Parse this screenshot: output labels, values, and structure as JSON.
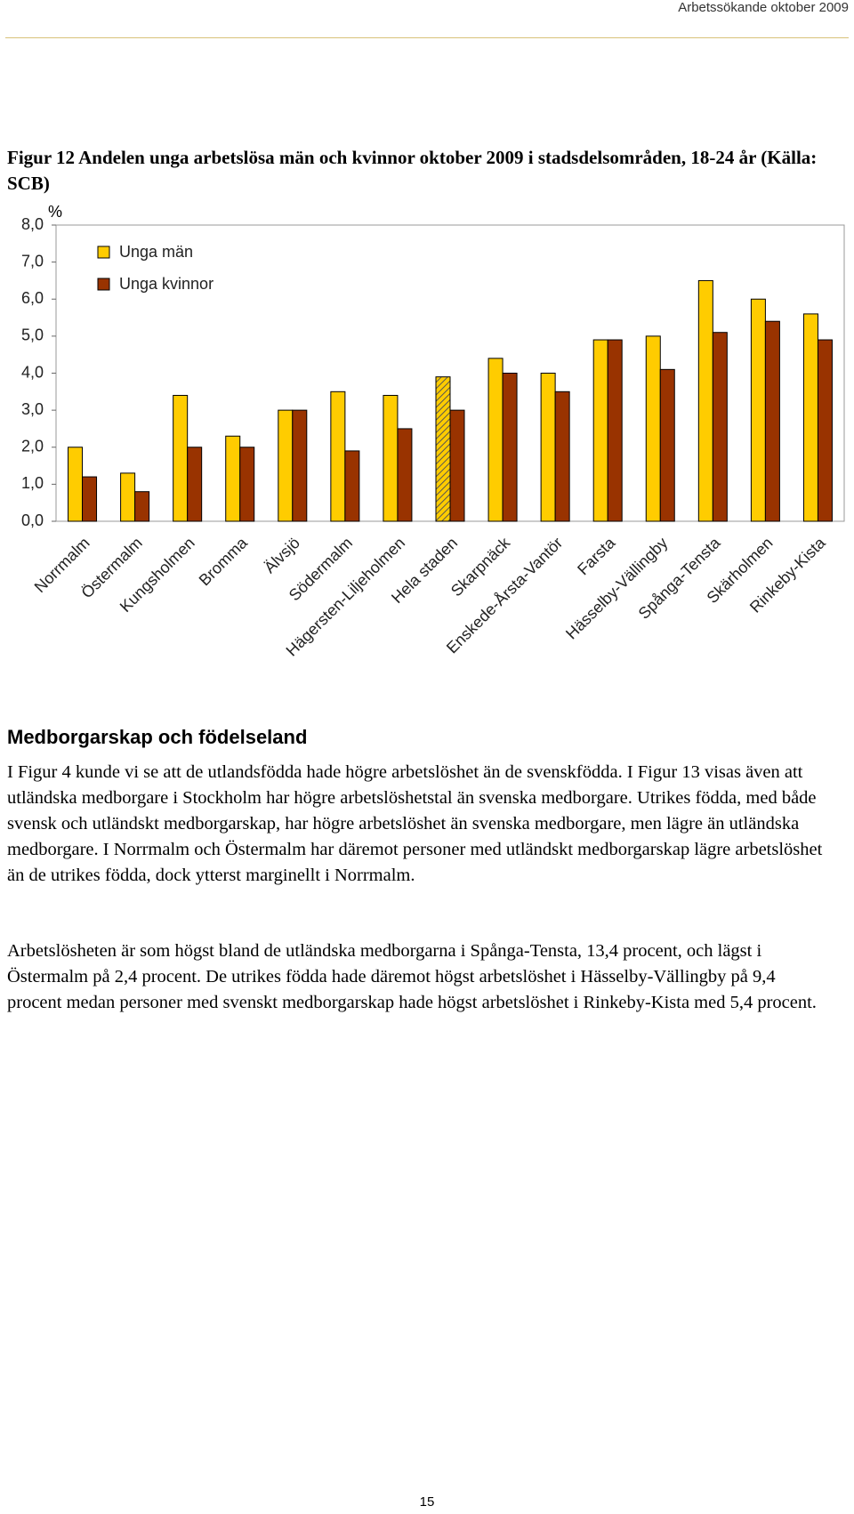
{
  "header": "Arbetssökande oktober 2009",
  "chart_data": {
    "type": "bar",
    "title": "Figur 12 Andelen unga arbetslösa män och kvinnor oktober 2009 i stadsdelsområden, 18-24 år (Källa: SCB)",
    "y_unit": "%",
    "categories": [
      "Norrmalm",
      "Östermalm",
      "Kungsholmen",
      "Bromma",
      "Älvsjö",
      "Södermalm",
      "Hägersten-Liljeholmen",
      "Hela staden",
      "Skarpnäck",
      "Enskede-Årsta-Vantör",
      "Farsta",
      "Hässelby-Vällingby",
      "Spånga-Tensta",
      "Skärholmen",
      "Rinkeby-Kista"
    ],
    "series": [
      {
        "name": "Unga män",
        "color": "#ffcc00",
        "values": [
          2.0,
          1.3,
          3.4,
          2.3,
          3.0,
          3.5,
          3.4,
          3.9,
          4.4,
          4.0,
          4.9,
          5.0,
          6.5,
          6.0,
          5.6
        ]
      },
      {
        "name": "Unga kvinnor",
        "color": "#993300",
        "values": [
          1.2,
          0.8,
          2.0,
          2.0,
          3.0,
          1.9,
          2.5,
          3.0,
          4.0,
          3.5,
          4.9,
          4.1,
          5.1,
          5.4,
          4.9
        ]
      }
    ],
    "hatched_categories": [
      "Hela staden"
    ],
    "ylim": [
      0,
      8
    ],
    "yticks": [
      {
        "value": 0,
        "label": "0,0"
      },
      {
        "value": 1,
        "label": "1,0"
      },
      {
        "value": 2,
        "label": "2,0"
      },
      {
        "value": 3,
        "label": "3,0"
      },
      {
        "value": 4,
        "label": "4,0"
      },
      {
        "value": 5,
        "label": "5,0"
      },
      {
        "value": 6,
        "label": "6,0"
      },
      {
        "value": 7,
        "label": "7,0"
      },
      {
        "value": 8,
        "label": "8,0"
      }
    ],
    "grid": false,
    "legend": "top-left"
  },
  "section_title": "Medborgarskap och födelseland",
  "paragraphs": [
    "I Figur 4 kunde vi se att de utlandsfödda hade högre arbetslöshet än de svenskfödda. I Figur 13 visas även att utländska medborgare i Stockholm har högre arbetslöshetstal än svenska medborgare. Utrikes födda, med både svensk och utländskt medborgarskap, har högre arbetslöshet än svenska medborgare, men lägre än utländska medborgare. I Norrmalm och Östermalm har däremot personer med utländskt medborgarskap lägre arbetslöshet än de utrikes födda, dock ytterst marginellt i Norrmalm.",
    "Arbetslösheten är som högst bland de utländska medborgarna i Spånga-Tensta, 13,4 procent, och lägst i Östermalm på 2,4 procent. De utrikes födda hade däremot högst arbetslöshet i Hässelby-Vällingby på 9,4 procent medan personer med svenskt medborgarskap hade högst arbetslöshet i Rinkeby-Kista med 5,4 procent."
  ],
  "page_number": "15"
}
